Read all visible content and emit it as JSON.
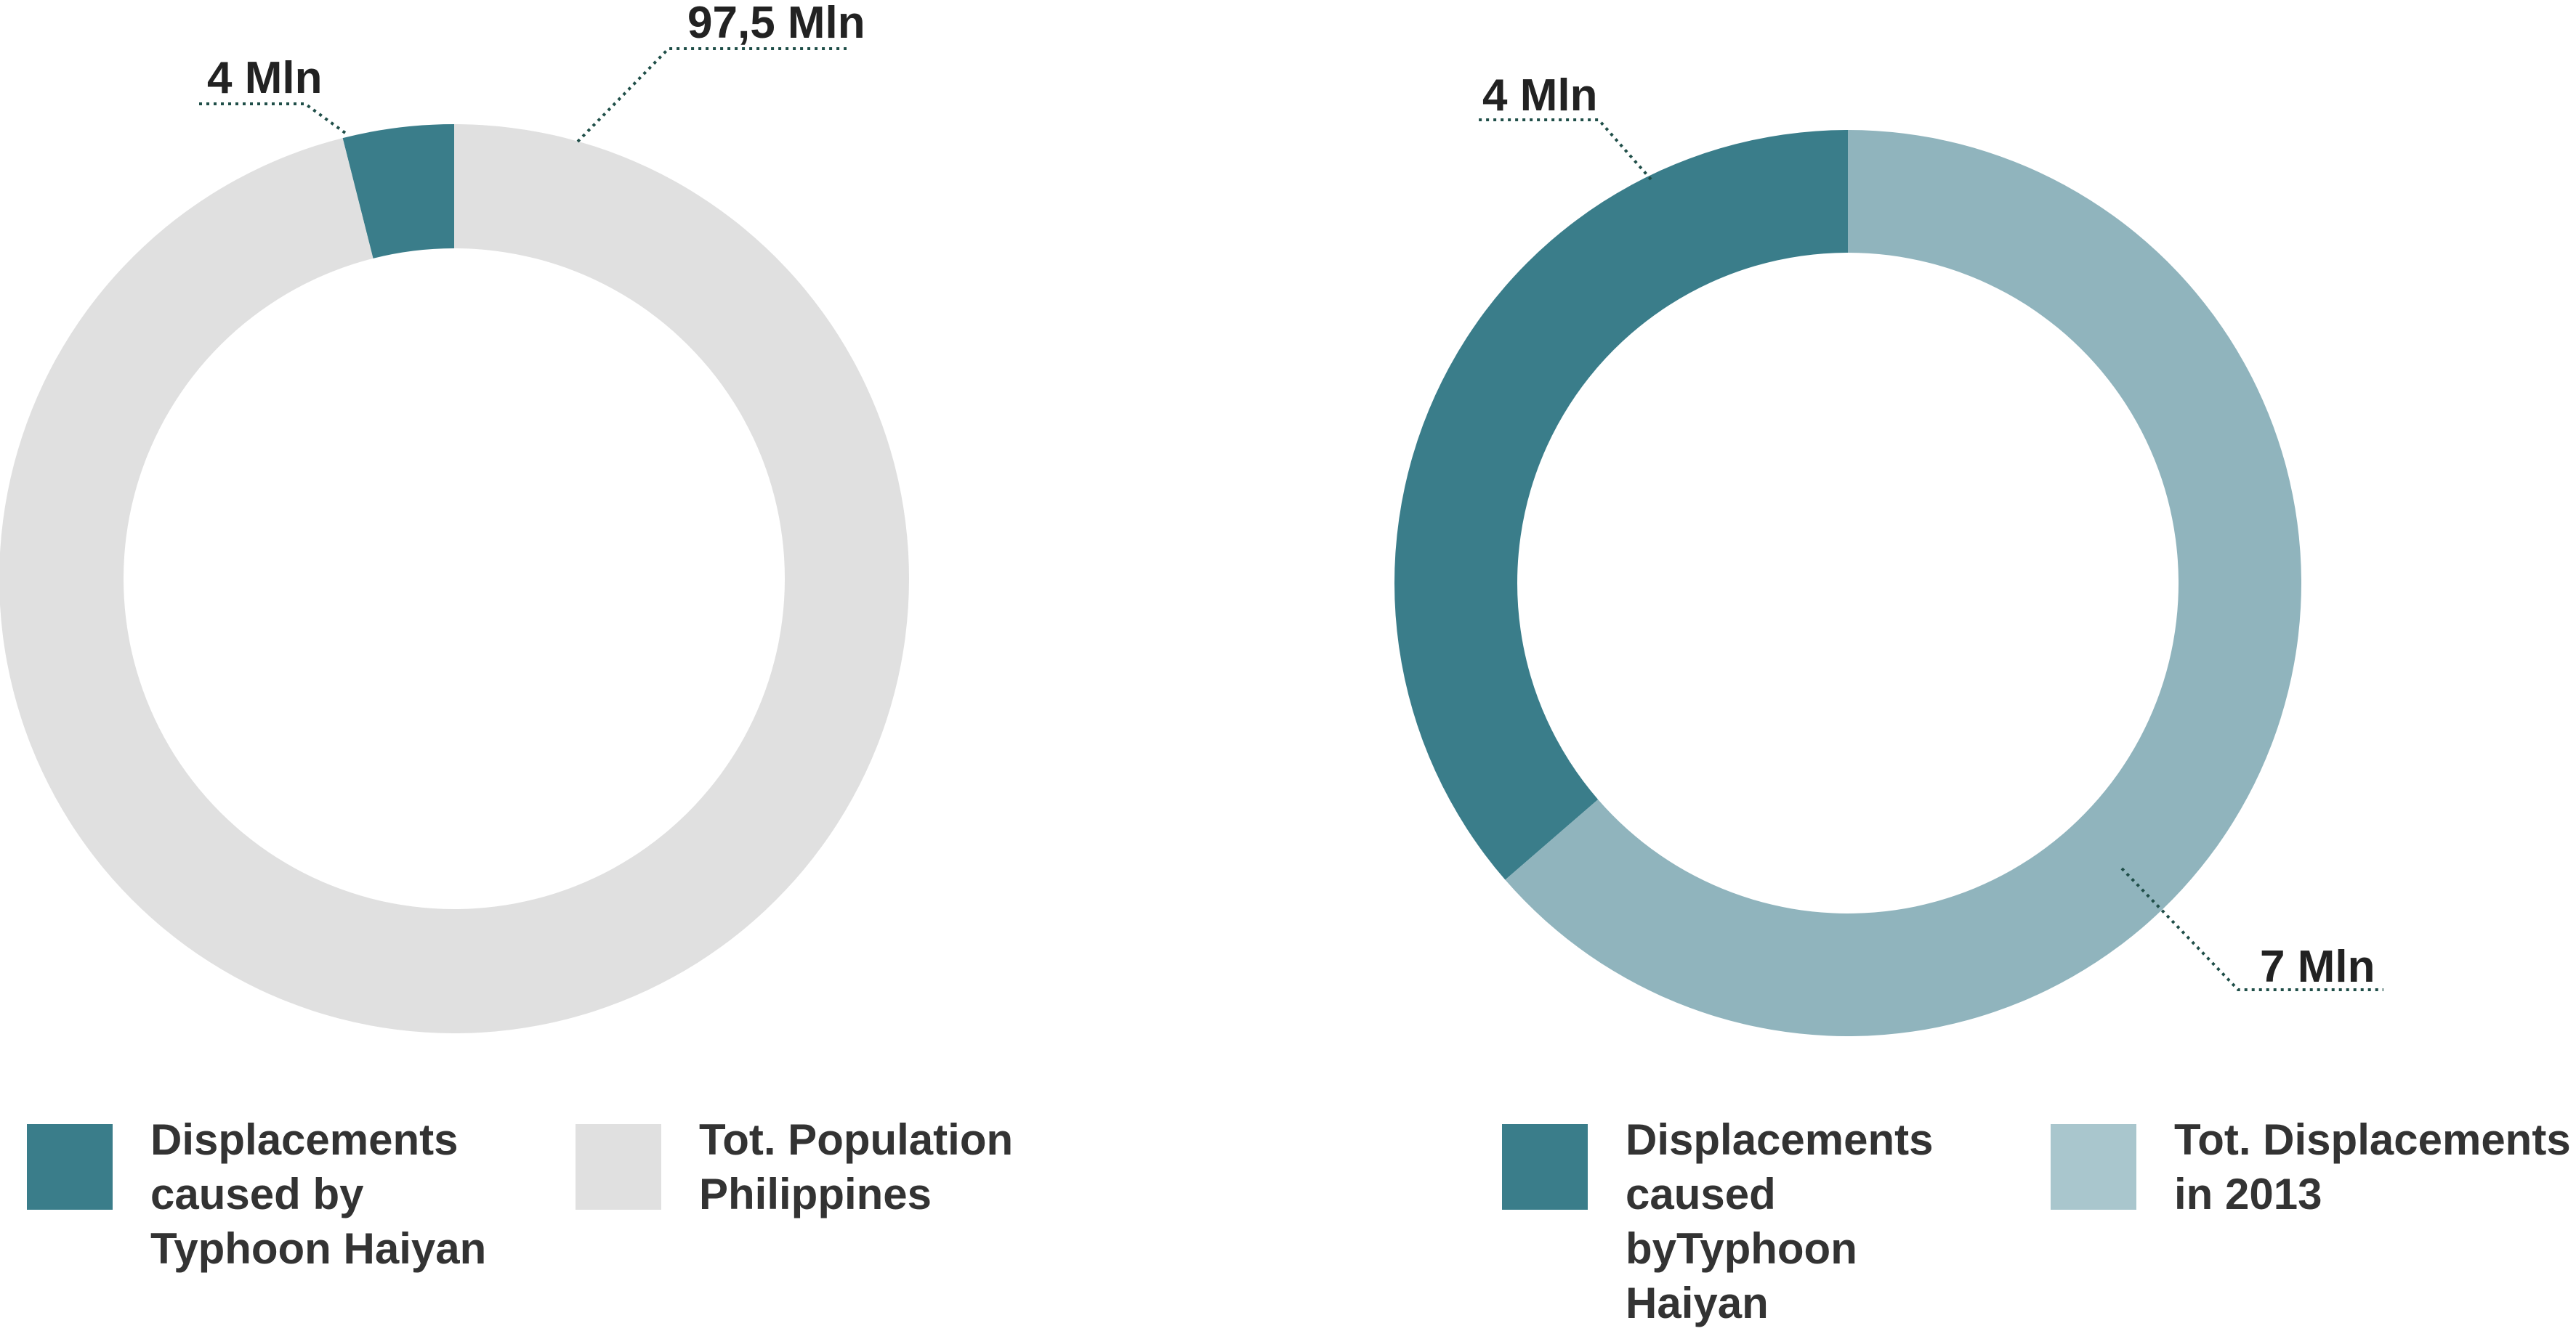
{
  "chart_data": [
    {
      "type": "pie",
      "variant": "donut",
      "slices": [
        {
          "label": "Displacements caused by Typhoon Haiyan",
          "value": 4,
          "value_label": "4 Mln",
          "color": "#3a7d8a"
        },
        {
          "label": "Tot. Population Philippines",
          "value": 97.5,
          "value_label": "97,5 Mln",
          "color": "#e0e0e0"
        }
      ],
      "legend": {
        "position": "bottom",
        "items": [
          {
            "label": "Displacements\ncaused by\nTyphoon Haiyan",
            "color": "#3a7d8a"
          },
          {
            "label": "Tot. Population\nPhilippines",
            "color": "#e0e0e0"
          }
        ]
      }
    },
    {
      "type": "pie",
      "variant": "donut",
      "slices": [
        {
          "label": "Displacements caused byTyphoon Haiyan",
          "value": 4,
          "value_label": "4 Mln",
          "color": "#3a7d8a"
        },
        {
          "label": "Tot. Displacements in 2013",
          "value": 7,
          "value_label": "7 Mln",
          "color": "#90b4bd"
        }
      ],
      "legend": {
        "position": "bottom",
        "items": [
          {
            "label": "Displacements\ncaused\nbyTyphoon\nHaiyan",
            "color": "#3a7d8a"
          },
          {
            "label": "Tot. Displacements\nin 2013",
            "color": "#a9c6cd"
          }
        ]
      }
    }
  ]
}
